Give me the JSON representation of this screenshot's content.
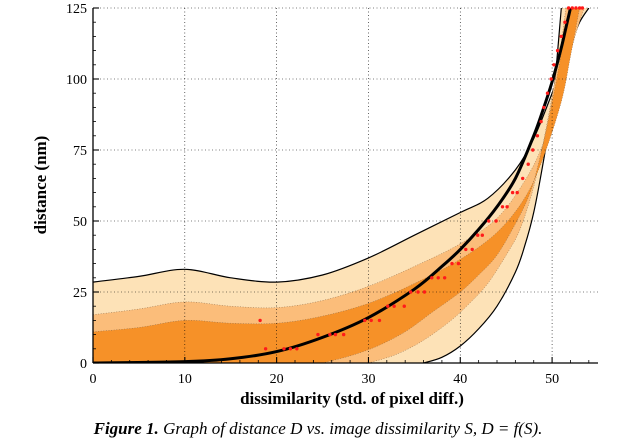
{
  "chart_data": {
    "type": "area",
    "xlabel": "dissimilarity (std. of pixel diff.)",
    "ylabel": "distance (nm)",
    "xlim": [
      0,
      55
    ],
    "ylim": [
      0,
      125
    ],
    "x_ticks": [
      0,
      10,
      20,
      30,
      40,
      50
    ],
    "y_ticks": [
      0,
      25,
      50,
      75,
      100,
      125
    ],
    "x_tick_labels": [
      "0",
      "10",
      "20",
      "30",
      "40",
      "50"
    ],
    "y_tick_labels": [
      "0",
      "25",
      "50",
      "75",
      "100",
      "125"
    ],
    "grid": true,
    "colors": {
      "band_outer": "#fde2b7",
      "band_middle": "#fbbd7a",
      "band_inner": "#f69128",
      "fit_line": "#000000",
      "points": "#ff1a1a"
    },
    "fit_curve": {
      "x": [
        0,
        10,
        15,
        20,
        25,
        30,
        35,
        38,
        40,
        42,
        44,
        46,
        48,
        49,
        50,
        51,
        51.5,
        52
      ],
      "y": [
        0,
        0.5,
        1.5,
        4,
        9,
        16,
        26,
        34,
        40,
        47,
        55,
        65,
        80,
        89,
        99,
        111,
        118,
        125
      ]
    },
    "bands": [
      {
        "upper": {
          "x": [
            0,
            5,
            10,
            15,
            20,
            25,
            30,
            35,
            40,
            43,
            46,
            48,
            50,
            52,
            53,
            54
          ],
          "y": [
            28.5,
            30.5,
            33,
            30,
            28.5,
            31,
            37,
            45,
            53,
            58,
            68,
            79,
            95,
            112,
            120,
            125
          ]
        },
        "lower": {
          "x": [
            36,
            38,
            40,
            42,
            44,
            46,
            47,
            48,
            49,
            50,
            50.5,
            51
          ],
          "y": [
            0,
            2,
            6,
            12,
            20,
            32,
            41,
            53,
            70,
            90,
            106,
            125
          ]
        }
      },
      {
        "upper": {
          "x": [
            0,
            5,
            10,
            15,
            20,
            25,
            30,
            35,
            40,
            44,
            47,
            49,
            51,
            52.5,
            53.5
          ],
          "y": [
            17,
            19,
            21.5,
            20,
            19.5,
            22,
            27,
            34,
            42,
            51,
            64,
            77,
            97,
            115,
            125
          ]
        },
        "lower": {
          "x": [
            30,
            33,
            36,
            39,
            41,
            43,
            45,
            46.5,
            48,
            49,
            50,
            51,
            51.5
          ],
          "y": [
            0,
            3,
            8,
            15,
            21,
            28,
            38,
            47,
            62,
            77,
            94,
            113,
            125
          ]
        }
      },
      {
        "upper": {
          "x": [
            0,
            5,
            10,
            15,
            20,
            25,
            30,
            35,
            40,
            44,
            47,
            49,
            51,
            52,
            53
          ],
          "y": [
            11,
            12.5,
            15,
            14,
            14,
            16.5,
            21,
            28,
            36.5,
            46,
            58,
            72,
            92,
            108,
            125
          ]
        },
        "lower": {
          "x": [
            25,
            28,
            31,
            34,
            37,
            40,
            42,
            44,
            46,
            47.5,
            48.5,
            49.5,
            50.5,
            51.5,
            52
          ],
          "y": [
            0,
            2.5,
            6,
            11,
            18,
            25,
            31,
            38,
            49,
            59,
            70,
            84,
            100,
            118,
            125
          ]
        }
      }
    ],
    "points": {
      "x": [
        18.2,
        18.8,
        20.8,
        21.5,
        22.2,
        24.5,
        25.8,
        26.4,
        27.3,
        29.6,
        30.3,
        31.2,
        32.1,
        32.8,
        33.9,
        34.6,
        35.4,
        36.1,
        36.9,
        37.6,
        38.3,
        39.1,
        39.8,
        40.6,
        41.3,
        41.9,
        42.4,
        43.1,
        43.9,
        44.6,
        45.1,
        45.7,
        46.2,
        46.8,
        47.4,
        47.9,
        48.4,
        48.8,
        49.1,
        49.5,
        49.9,
        50.2,
        50.6,
        51.0,
        51.4,
        51.8,
        52.2,
        52.6,
        53.0,
        53.3
      ],
      "y": [
        15,
        5,
        5,
        5,
        5,
        10,
        10,
        10,
        10,
        15,
        15,
        15,
        20,
        20,
        20,
        25,
        25,
        25,
        30,
        30,
        30,
        35,
        35,
        40,
        40,
        45,
        45,
        50,
        50,
        55,
        55,
        60,
        60,
        65,
        70,
        75,
        80,
        85,
        90,
        95,
        100,
        105,
        110,
        115,
        120,
        125,
        125,
        125,
        125,
        125
      ]
    }
  },
  "caption": {
    "lead": "Figure 1.",
    "text": " Graph of distance D vs. image dissimilarity S, D = f(S)."
  }
}
